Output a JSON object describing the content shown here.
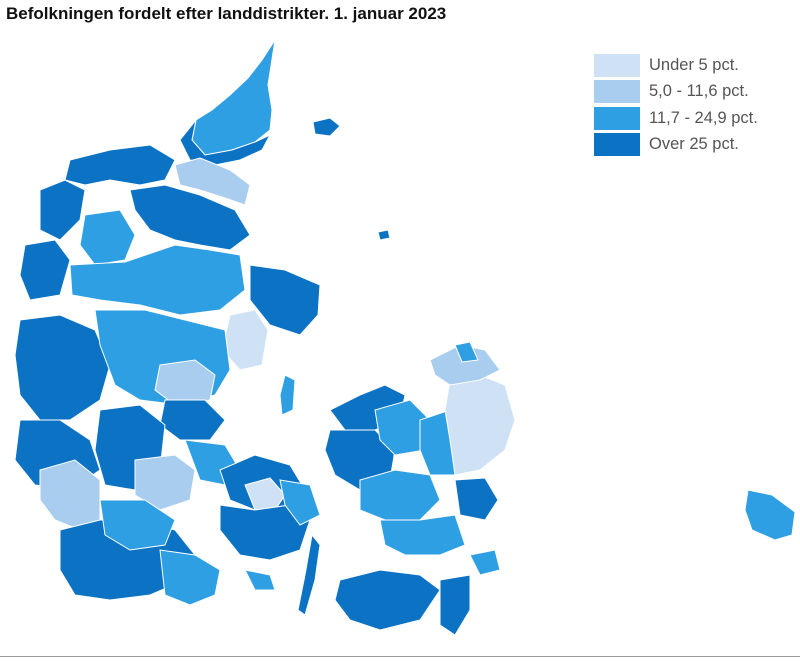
{
  "title": "Befolkningen fordelt efter landdistrikter. 1. januar 2023",
  "legend": [
    {
      "label": "Under 5 pct.",
      "color": "#cfe2f5"
    },
    {
      "label": "5,0 - 11,6 pct.",
      "color": "#a9cdef"
    },
    {
      "label": "11,7 - 24,9 pct.",
      "color": "#2f9fe3"
    },
    {
      "label": "Over 25 pct.",
      "color": "#0b72c4"
    }
  ],
  "map": {
    "border_color": "#ffffff",
    "background": "#ffffff"
  }
}
